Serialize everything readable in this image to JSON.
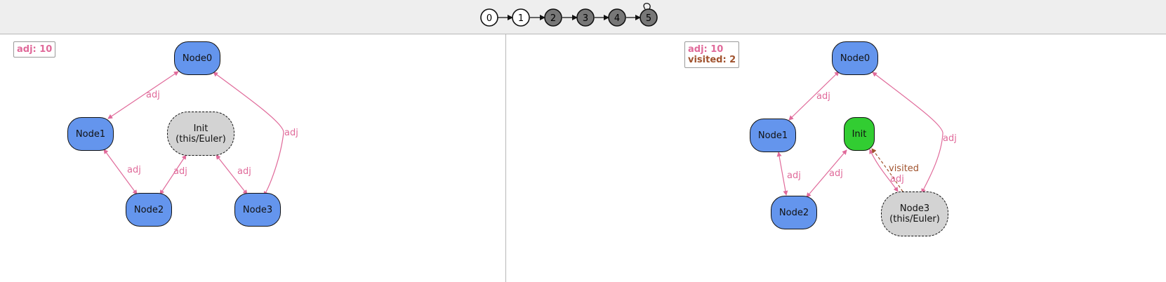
{
  "timeline": {
    "steps": [
      "0",
      "1",
      "2",
      "3",
      "4",
      "5"
    ],
    "current_step": "5"
  },
  "colors": {
    "adj": "#e06a9a",
    "visited": "#a0522d",
    "node_blue": "#6495ed",
    "node_green": "#32cd32",
    "node_grey": "#d3d3d3"
  },
  "left": {
    "legend": {
      "adj": "adj: 10"
    },
    "nodes": {
      "node0": "Node0",
      "node1": "Node1",
      "init": "Init\n(this/Euler)",
      "node2": "Node2",
      "node3": "Node3"
    },
    "edge_labels": {
      "node0_node1": "adj",
      "node0_node3": "adj",
      "node1_node2": "adj",
      "init_node2": "adj",
      "init_node3": "adj"
    }
  },
  "right": {
    "legend": {
      "adj": "adj: 10",
      "visited": "visited: 2"
    },
    "nodes": {
      "node0": "Node0",
      "node1": "Node1",
      "init": "Init",
      "node2": "Node2",
      "node3": "Node3\n(this/Euler)"
    },
    "edge_labels": {
      "node0_node1": "adj",
      "node0_node3": "adj",
      "node1_node2": "adj",
      "init_node2": "adj",
      "init_node3": "adj",
      "node3_init_visited": "visited"
    }
  }
}
